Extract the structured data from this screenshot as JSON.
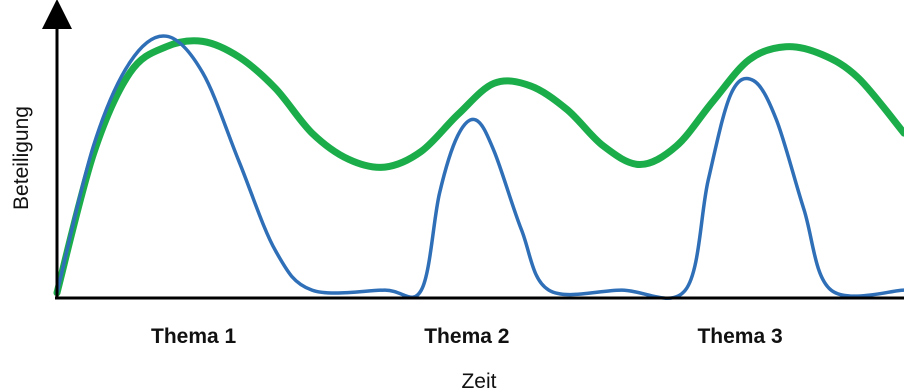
{
  "chart_data": {
    "type": "line",
    "title": "",
    "xlabel": "Zeit",
    "ylabel": "Beteiligung",
    "categories": [
      "Thema 1",
      "Thema 2",
      "Thema 3"
    ],
    "category_positions": [
      1.5,
      4.5,
      7.5
    ],
    "xlim": [
      0,
      9.3
    ],
    "ylim": [
      0,
      1.1
    ],
    "grid": false,
    "legend": "none",
    "series": [
      {
        "color": "#1cad4b",
        "points": [
          [
            0,
            0.02
          ],
          [
            0.4,
            0.55
          ],
          [
            0.8,
            0.86
          ],
          [
            1.2,
            0.96
          ],
          [
            1.6,
            0.98
          ],
          [
            2.0,
            0.92
          ],
          [
            2.4,
            0.8
          ],
          [
            2.8,
            0.63
          ],
          [
            3.2,
            0.53
          ],
          [
            3.6,
            0.5
          ],
          [
            4.0,
            0.56
          ],
          [
            4.4,
            0.7
          ],
          [
            4.8,
            0.82
          ],
          [
            5.2,
            0.81
          ],
          [
            5.6,
            0.72
          ],
          [
            6.0,
            0.58
          ],
          [
            6.4,
            0.51
          ],
          [
            6.8,
            0.58
          ],
          [
            7.2,
            0.75
          ],
          [
            7.6,
            0.91
          ],
          [
            8.0,
            0.96
          ],
          [
            8.4,
            0.93
          ],
          [
            8.8,
            0.84
          ],
          [
            9.3,
            0.63
          ]
        ]
      },
      {
        "color": "#2f6fb7",
        "points": [
          [
            0,
            0.02
          ],
          [
            0.4,
            0.58
          ],
          [
            0.8,
            0.9
          ],
          [
            1.2,
            1.0
          ],
          [
            1.6,
            0.86
          ],
          [
            2.0,
            0.52
          ],
          [
            2.4,
            0.18
          ],
          [
            2.8,
            0.03
          ],
          [
            3.6,
            0.03
          ],
          [
            4.0,
            0.03
          ],
          [
            4.2,
            0.4
          ],
          [
            4.4,
            0.62
          ],
          [
            4.6,
            0.68
          ],
          [
            4.8,
            0.56
          ],
          [
            5.1,
            0.26
          ],
          [
            5.4,
            0.03
          ],
          [
            6.2,
            0.03
          ],
          [
            6.9,
            0.03
          ],
          [
            7.15,
            0.45
          ],
          [
            7.4,
            0.78
          ],
          [
            7.65,
            0.83
          ],
          [
            7.9,
            0.68
          ],
          [
            8.2,
            0.34
          ],
          [
            8.5,
            0.03
          ],
          [
            9.3,
            0.03
          ]
        ]
      }
    ]
  }
}
